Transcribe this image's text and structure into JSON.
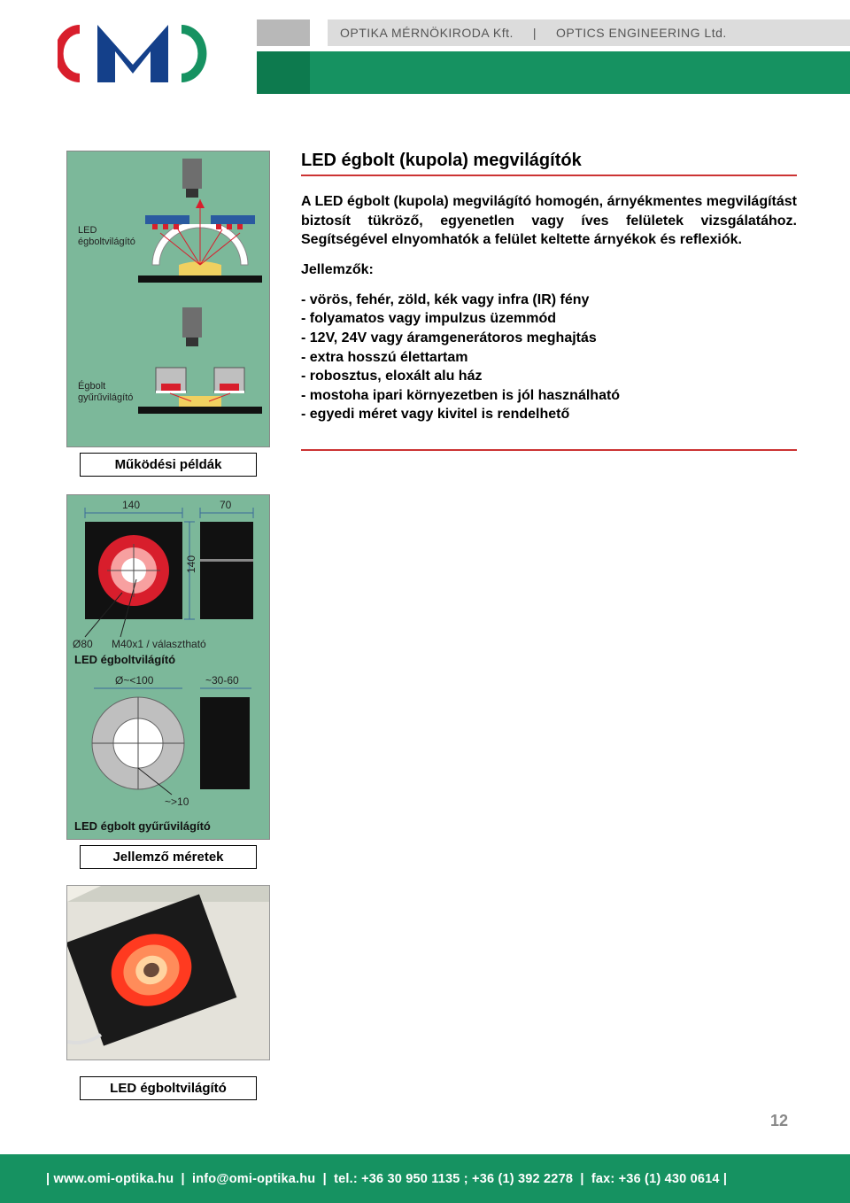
{
  "header": {
    "company_hu": "OPTIKA MÉRNÖKIRODA Kft.",
    "company_en": "OPTICS ENGINEERING Ltd.",
    "separator": "|",
    "logo_text": "OMI",
    "logo_colors": {
      "outer": "#d81e2c",
      "middle": "#14408a",
      "inner": "#169261"
    },
    "bar_colors": {
      "top_light": "#dcdcdc",
      "top_tab": "#b8b8b8",
      "green": "#169261",
      "green_tab": "#0d7a4e"
    }
  },
  "main": {
    "title": "LED égbolt (kupola) megvilágítók",
    "paragraph": "A LED égbolt (kupola) megvilágító homogén, árnyékmentes megvilágítást biztosít tükröző, egyenetlen vagy íves felületek vizsgálatához. Segítségével elnyomhatók a felület keltette árnyékok és reflexiók.",
    "features_title": "Jellemzők:",
    "features": [
      "- vörös, fehér, zöld, kék vagy infra (IR) fény",
      "- folyamatos vagy impulzus üzemmód",
      "- 12V, 24V vagy áramgenerátoros meghajtás",
      "- extra hosszú élettartam",
      "- robosztus, eloxált alu ház",
      "- mostoha ipari környezetben is jól használható",
      "- egyedi méret vagy kivitel is rendelhető"
    ],
    "rule_color": "#c33"
  },
  "diagrams": {
    "bg_color": "#7cb89a",
    "top": {
      "label": "LED\négboltvilágító",
      "camera_color": "#6e6e6e",
      "dome_fill": "#ffffff",
      "dome_stroke": "#555",
      "arrow_color": "#d81e2c",
      "sample_color": "#f0d060",
      "table_color": "#111"
    },
    "bottom": {
      "label": "Égbolt\ngyűrűvilágító",
      "ring_outer": "#bfbfbf",
      "ring_led_red": "#d81e2c",
      "sample_color": "#f0d060",
      "table_color": "#111"
    },
    "caption": "Működési példák"
  },
  "dimensions": {
    "box1": {
      "width_label": "140",
      "height_label": "140",
      "width2_label": "70",
      "aperture_label": "Ø80",
      "thread_label": "M40x1 / választható",
      "title": "LED égboltvilágító",
      "box_color": "#111",
      "ring_color": "#d81e2c",
      "ring_core": "#f7a0a0",
      "cross_color": "#4a4a4a"
    },
    "box2": {
      "diameter_label": "Ø~<100",
      "thickness_label": "~30-60",
      "inner_label": "~>10",
      "title": "LED égbolt gyűrűvilágító",
      "ring_outer": "#bfbfbf",
      "ring_inner": "#ffffff",
      "side_color": "#111",
      "cross_color": "#4a4a4a"
    },
    "caption": "Jellemző méretek"
  },
  "photo": {
    "bg": "#d8d6d0",
    "wall": "#e4e2da",
    "box_color": "#1a1a1a",
    "glow_outer": "#ff3a20",
    "glow_mid": "#ff8c5a",
    "glow_core": "#ffd4a0",
    "caption": "LED égboltvilágító"
  },
  "page_number": "12",
  "footer": {
    "items": [
      "www.omi-optika.hu",
      "info@omi-optika.hu",
      "tel.: +36 30 950 1135  ;  +36 (1) 392 2278",
      "fax: +36 (1) 430 0614"
    ],
    "bg": "#169261",
    "text_color": "#ffffff"
  }
}
